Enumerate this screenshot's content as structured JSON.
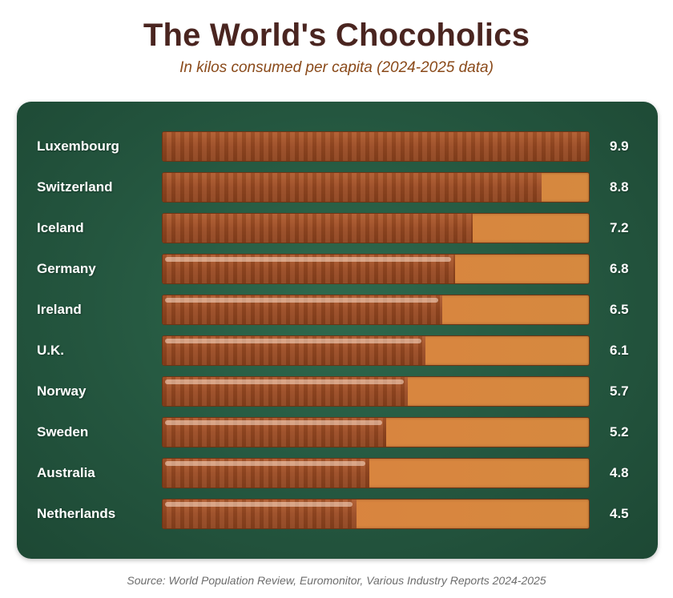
{
  "chart_data": {
    "type": "bar",
    "orientation": "horizontal",
    "title": "The World's Chocoholics",
    "subtitle": "In kilos consumed per capita (2024-2025 data)",
    "categories": [
      "Luxembourg",
      "Switzerland",
      "Iceland",
      "Germany",
      "Ireland",
      "U.K.",
      "Norway",
      "Sweden",
      "Australia",
      "Netherlands"
    ],
    "values": [
      9.9,
      8.8,
      7.2,
      6.8,
      6.5,
      6.1,
      5.7,
      5.2,
      4.8,
      4.5
    ],
    "value_labels": [
      "9.9",
      "8.8",
      "7.2",
      "6.8",
      "6.5",
      "6.1",
      "5.7",
      "5.2",
      "4.8",
      "4.5"
    ],
    "xlim": [
      0,
      9.9
    ],
    "xlabel": "",
    "ylabel": "",
    "grid": false,
    "source": "Source: World Population Review, Euromonitor, Various Industry Reports 2024-2025"
  },
  "colors": {
    "title": "#4a2520",
    "subtitle": "#8a4a1a",
    "panel": "#24563f",
    "bar_fill": "#9a4a22",
    "bar_track": "#d9843f",
    "label_text": "#ffffff",
    "source_text": "#6d6d6d"
  }
}
